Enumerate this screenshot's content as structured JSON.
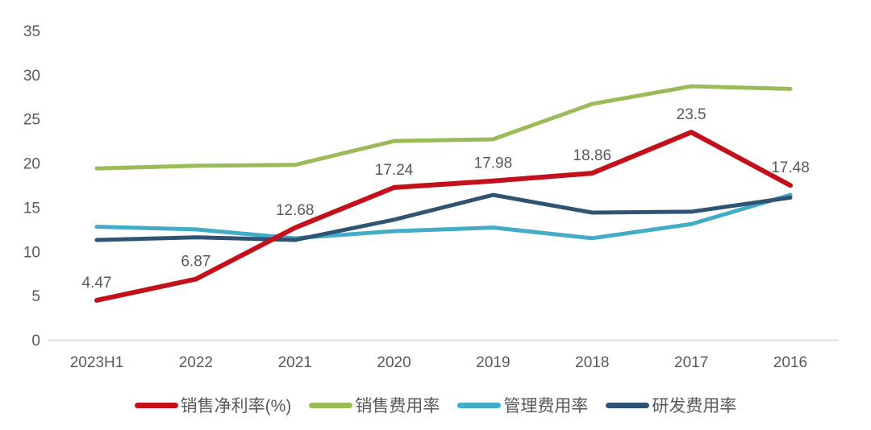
{
  "chart_data": {
    "type": "line",
    "title": "",
    "xlabel": "",
    "ylabel": "",
    "categories": [
      "2023H1",
      "2022",
      "2021",
      "2020",
      "2019",
      "2018",
      "2017",
      "2016"
    ],
    "series": [
      {
        "id": "net-profit-margin",
        "name": "销售净利率(%)",
        "color": "#C3101B",
        "values": [
          4.47,
          6.87,
          12.68,
          17.24,
          17.98,
          18.86,
          23.5,
          17.48
        ],
        "data_labels": [
          "4.47",
          "6.87",
          "12.68",
          "17.24",
          "17.98",
          "18.86",
          "23.5",
          "17.48"
        ]
      },
      {
        "id": "selling-expense-ratio",
        "name": "销售费用率",
        "color": "#9BBB59",
        "values": [
          19.4,
          19.7,
          19.8,
          22.5,
          22.7,
          26.7,
          28.7,
          28.4
        ]
      },
      {
        "id": "admin-expense-ratio",
        "name": "管理费用率",
        "color": "#45ACC8",
        "values": [
          12.8,
          12.5,
          11.5,
          12.3,
          12.7,
          11.5,
          13.1,
          16.4
        ]
      },
      {
        "id": "rd-expense-ratio",
        "name": "研发费用率",
        "color": "#2F5373",
        "values": [
          11.3,
          11.6,
          11.3,
          13.6,
          16.4,
          14.4,
          14.5,
          16.1
        ]
      }
    ],
    "y_ticks": [
      0,
      5,
      10,
      15,
      20,
      25,
      30,
      35
    ],
    "ylim": [
      0,
      35
    ],
    "grid": false,
    "legend_position": "bottom"
  },
  "colors": {
    "background": "#FFFFFF",
    "axis_line": "#D9D9D9",
    "text": "#595959"
  }
}
